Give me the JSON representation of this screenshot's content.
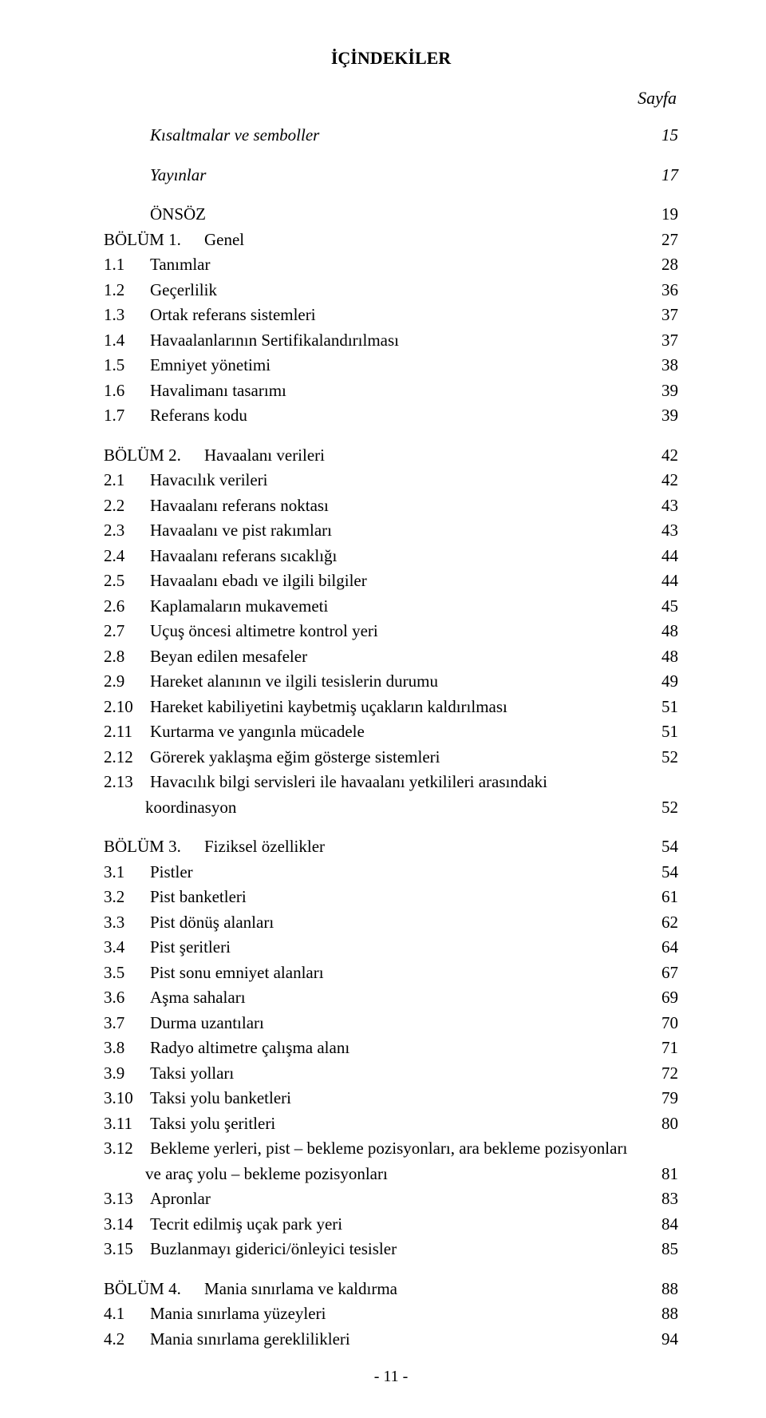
{
  "title": "İÇİNDEKİLER",
  "pageLabel": "Sayfa",
  "footer": "- 11 -",
  "blocks": [
    {
      "entries": [
        {
          "num": "",
          "text": "Kısaltmalar ve semboller",
          "page": "15",
          "italic": true
        }
      ]
    },
    {
      "entries": [
        {
          "num": "",
          "text": "Yayınlar",
          "page": "17",
          "italic": true
        }
      ]
    },
    {
      "entries": [
        {
          "num": "",
          "text": "ÖNSÖZ",
          "page": "19"
        },
        {
          "wideNum": "BÖLÜM 1.",
          "text": "Genel",
          "page": "27"
        },
        {
          "num": "1.1",
          "text": "Tanımlar",
          "page": "28"
        },
        {
          "num": "1.2",
          "text": "Geçerlilik",
          "page": "36"
        },
        {
          "num": "1.3",
          "text": "Ortak referans sistemleri",
          "page": "37"
        },
        {
          "num": "1.4",
          "text": "Havaalanlarının Sertifikalandırılması",
          "page": "37"
        },
        {
          "num": "1.5",
          "text": "Emniyet yönetimi",
          "page": "38"
        },
        {
          "num": "1.6",
          "text": "Havalimanı tasarımı",
          "page": "39"
        },
        {
          "num": "1.7",
          "text": "Referans kodu",
          "page": "39"
        }
      ]
    },
    {
      "entries": [
        {
          "wideNum": "BÖLÜM 2.",
          "text": "Havaalanı verileri",
          "page": "42"
        },
        {
          "num": "2.1",
          "text": "Havacılık verileri",
          "page": "42"
        },
        {
          "num": "2.2",
          "text": "Havaalanı referans noktası",
          "page": "43"
        },
        {
          "num": "2.3",
          "text": "Havaalanı ve pist rakımları",
          "page": "43"
        },
        {
          "num": "2.4",
          "text": "Havaalanı referans sıcaklığı",
          "page": "44"
        },
        {
          "num": "2.5",
          "text": "Havaalanı ebadı ve ilgili bilgiler",
          "page": "44"
        },
        {
          "num": "2.6",
          "text": "Kaplamaların mukavemeti",
          "page": "45"
        },
        {
          "num": "2.7",
          "text": "Uçuş öncesi altimetre kontrol yeri",
          "page": "48"
        },
        {
          "num": "2.8",
          "text": "Beyan edilen mesafeler",
          "page": "48"
        },
        {
          "num": "2.9",
          "text": "Hareket alanının ve ilgili tesislerin durumu",
          "page": "49"
        },
        {
          "num": "2.10",
          "text": "Hareket kabiliyetini kaybetmiş uçakların kaldırılması",
          "page": "51"
        },
        {
          "num": "2.11",
          "text": "Kurtarma ve yangınla mücadele",
          "page": "51"
        },
        {
          "num": "2.12",
          "text": "Görerek yaklaşma eğim gösterge sistemleri",
          "page": "52"
        },
        {
          "num": "2.13",
          "text": "Havacılık bilgi servisleri ile havaalanı yetkilileri arasındaki",
          "extra": "koordinasyon",
          "page": "52"
        }
      ]
    },
    {
      "entries": [
        {
          "wideNum": "BÖLÜM 3.",
          "text": "Fiziksel özellikler",
          "page": "54"
        },
        {
          "num": "3.1",
          "text": "Pistler",
          "page": "54"
        },
        {
          "num": "3.2",
          "text": "Pist banketleri",
          "page": "61"
        },
        {
          "num": "3.3",
          "text": "Pist dönüş alanları",
          "page": "62"
        },
        {
          "num": "3.4",
          "text": "Pist şeritleri",
          "page": "64"
        },
        {
          "num": "3.5",
          "text": "Pist sonu emniyet alanları",
          "page": "67"
        },
        {
          "num": "3.6",
          "text": "Aşma sahaları",
          "page": "69"
        },
        {
          "num": "3.7",
          "text": "Durma uzantıları",
          "page": "70"
        },
        {
          "num": "3.8",
          "text": "Radyo altimetre çalışma alanı",
          "page": "71"
        },
        {
          "num": "3.9",
          "text": "Taksi yolları",
          "page": "72"
        },
        {
          "num": "3.10",
          "text": "Taksi yolu banketleri",
          "page": "79"
        },
        {
          "num": "3.11",
          "text": "Taksi yolu şeritleri",
          "page": "80"
        },
        {
          "num": "3.12",
          "text": "Bekleme yerleri, pist – bekleme pozisyonları, ara bekleme pozisyonları",
          "extra": "ve araç yolu – bekleme pozisyonları",
          "page": "81"
        },
        {
          "num": "3.13",
          "text": "Apronlar",
          "page": "83"
        },
        {
          "num": "3.14",
          "text": "Tecrit edilmiş uçak park yeri",
          "page": "84"
        },
        {
          "num": "3.15",
          "text": "Buzlanmayı giderici/önleyici tesisler",
          "page": "85"
        }
      ]
    },
    {
      "entries": [
        {
          "wideNum": "BÖLÜM 4.",
          "text": "Mania sınırlama ve kaldırma",
          "page": "88"
        },
        {
          "num": "4.1",
          "text": "Mania sınırlama yüzeyleri",
          "page": "88"
        },
        {
          "num": "4.2",
          "text": "Mania sınırlama gereklilikleri",
          "page": "94"
        }
      ]
    }
  ]
}
